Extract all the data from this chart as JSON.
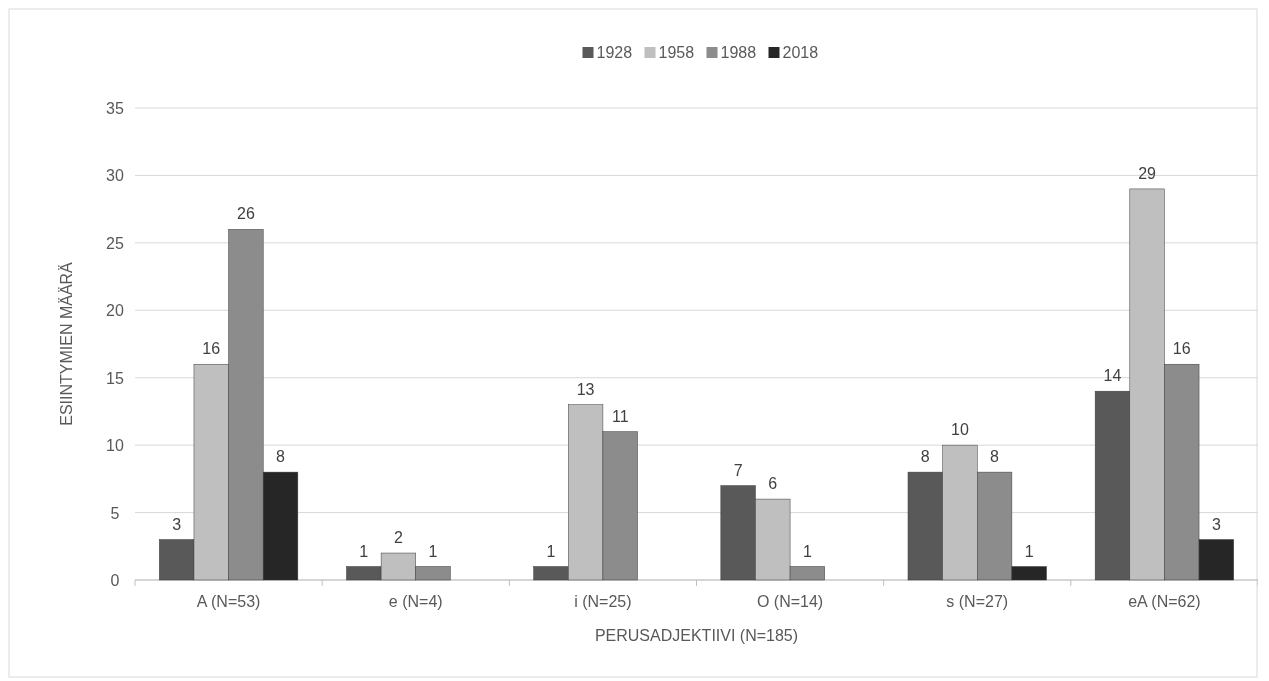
{
  "chart_data": {
    "type": "bar",
    "categories": [
      "A (N=53)",
      "e (N=4)",
      "i (N=25)",
      "O (N=14)",
      "s (N=27)",
      "eA (N=62)"
    ],
    "series": [
      {
        "name": "1928",
        "color": "#595959",
        "values": [
          3,
          1,
          1,
          7,
          8,
          14
        ]
      },
      {
        "name": "1958",
        "color": "#bfbfbf",
        "values": [
          16,
          2,
          13,
          6,
          10,
          29
        ]
      },
      {
        "name": "1988",
        "color": "#8c8c8c",
        "values": [
          26,
          1,
          11,
          1,
          8,
          16
        ]
      },
      {
        "name": "2018",
        "color": "#262626",
        "values": [
          8,
          null,
          null,
          null,
          1,
          3
        ]
      }
    ],
    "xlabel": "PERUSADJEKTIIVI (N=185)",
    "ylabel": "ESIINTYMIEN MÄÄRÄ",
    "ylim": [
      0,
      35
    ],
    "yticks": [
      0,
      5,
      10,
      15,
      20,
      25,
      30,
      35
    ],
    "grid": "y",
    "legend": "top",
    "data_labels": true
  }
}
